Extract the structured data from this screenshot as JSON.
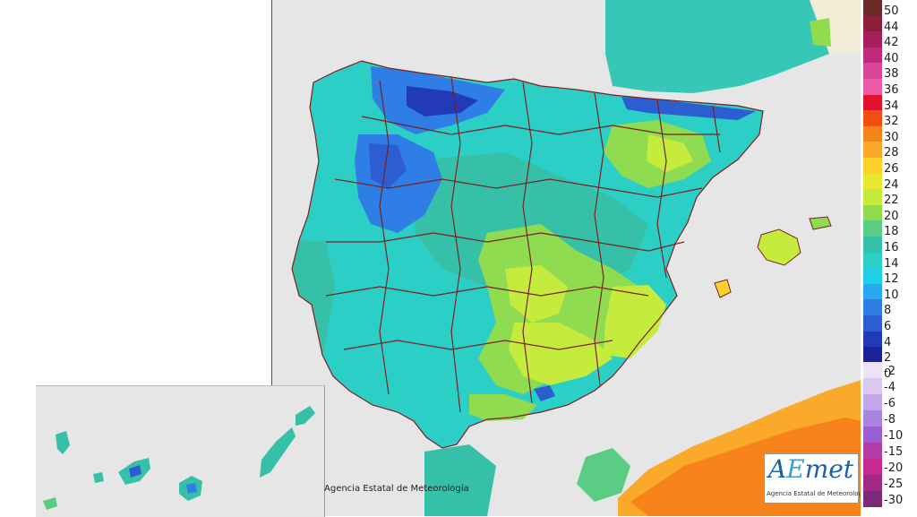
{
  "credit_text": "Agencia Estatal de Meteorología",
  "logo": {
    "wordmark_a": "A",
    "wordmark_e": "E",
    "wordmark_rest": "met",
    "tagline": "Agencia Estatal de Meteorología"
  },
  "legend": {
    "positive": [
      {
        "label": "50",
        "color": "#6b2a2a"
      },
      {
        "label": "44",
        "color": "#8c1d3c"
      },
      {
        "label": "42",
        "color": "#a61e5a"
      },
      {
        "label": "40",
        "color": "#c2287a"
      },
      {
        "label": "38",
        "color": "#d8479a"
      },
      {
        "label": "36",
        "color": "#ec5aa8"
      },
      {
        "label": "34",
        "color": "#e0142c"
      },
      {
        "label": "32",
        "color": "#f04e12"
      },
      {
        "label": "30",
        "color": "#f7841a"
      },
      {
        "label": "28",
        "color": "#fba92a"
      },
      {
        "label": "26",
        "color": "#fdd12a"
      },
      {
        "label": "24",
        "color": "#e9e82e"
      },
      {
        "label": "22",
        "color": "#c5ec3c"
      },
      {
        "label": "20",
        "color": "#8fdc50"
      },
      {
        "label": "18",
        "color": "#5bcc84"
      },
      {
        "label": "16",
        "color": "#37c0a8"
      },
      {
        "label": "14",
        "color": "#2ccfc6"
      },
      {
        "label": "12",
        "color": "#1ed0e8"
      },
      {
        "label": "10",
        "color": "#2aa8f0"
      },
      {
        "label": "8",
        "color": "#2f7ee6"
      },
      {
        "label": "6",
        "color": "#2c5ed2"
      },
      {
        "label": "4",
        "color": "#233ab8"
      },
      {
        "label": "2",
        "color": "#1c2396"
      },
      {
        "label": "0",
        "color": "#14146a"
      }
    ],
    "negative": [
      {
        "label": "-2",
        "color": "#ece4f6"
      },
      {
        "label": "-4",
        "color": "#dac8ef"
      },
      {
        "label": "-6",
        "color": "#c3a6e8"
      },
      {
        "label": "-8",
        "color": "#ab84e0"
      },
      {
        "label": "-10",
        "color": "#9a5fd6"
      },
      {
        "label": "-15",
        "color": "#b43ca8"
      },
      {
        "label": "-20",
        "color": "#c62a92"
      },
      {
        "label": "-25",
        "color": "#a12a86"
      },
      {
        "label": "-30",
        "color": "#7a2a7a"
      }
    ]
  },
  "colors": {
    "sea": "#e6e6e6",
    "border": "#7a2020",
    "land_base": "#2ccfc6"
  }
}
